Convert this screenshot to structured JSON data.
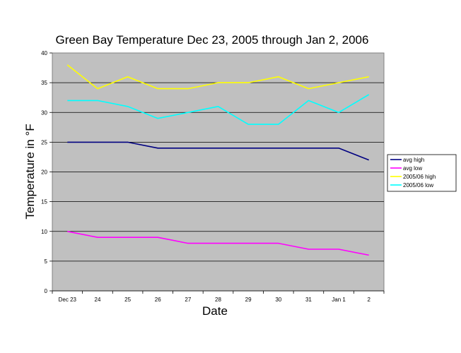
{
  "chart_data": {
    "type": "line",
    "title": "Green Bay Temperature Dec 23, 2005 through Jan 2, 2006",
    "xlabel": "Date",
    "ylabel": "Temperature in °F",
    "categories": [
      "Dec 23",
      "24",
      "25",
      "26",
      "27",
      "28",
      "29",
      "30",
      "31",
      "Jan 1",
      "2"
    ],
    "ylim": [
      0,
      40
    ],
    "yticks": [
      0,
      5,
      10,
      15,
      20,
      25,
      30,
      35,
      40
    ],
    "grid": true,
    "plot_background": "#C0C0C0",
    "legend_position": "right",
    "series": [
      {
        "name": "avg high",
        "color": "#000080",
        "values": [
          25,
          25,
          25,
          24,
          24,
          24,
          24,
          24,
          24,
          24,
          22
        ]
      },
      {
        "name": "avg low",
        "color": "#FF00FF",
        "values": [
          10,
          9,
          9,
          9,
          8,
          8,
          8,
          8,
          7,
          7,
          6
        ]
      },
      {
        "name": "2005/06 high",
        "color": "#FFFF00",
        "values": [
          38,
          34,
          36,
          34,
          34,
          35,
          35,
          36,
          34,
          35,
          36
        ]
      },
      {
        "name": "2005/06 low",
        "color": "#00FFFF",
        "values": [
          32,
          32,
          31,
          29,
          30,
          31,
          28,
          28,
          32,
          30,
          33
        ]
      }
    ]
  }
}
